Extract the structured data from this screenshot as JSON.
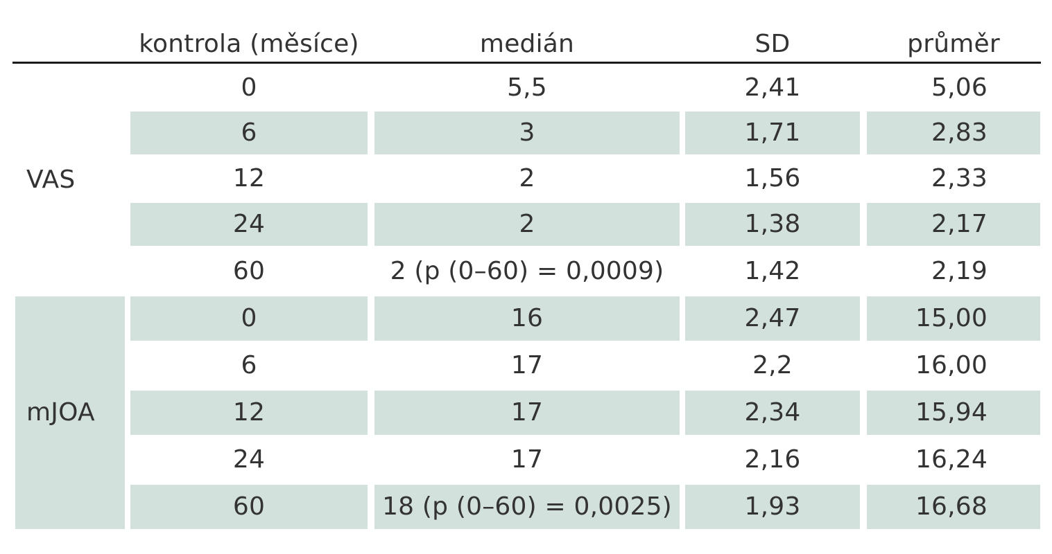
{
  "table": {
    "headers": {
      "col_group": "",
      "col_control": "kontrola (měsíce)",
      "col_median": "medián",
      "col_sd": "SD",
      "col_mean": "průměr"
    },
    "groups": [
      {
        "label": "VAS",
        "rows": [
          {
            "control": "0",
            "median": "5,5",
            "sd": "2,41",
            "mean": "5,06"
          },
          {
            "control": "6",
            "median": "3",
            "sd": "1,71",
            "mean": "2,83"
          },
          {
            "control": "12",
            "median": "2",
            "sd": "1,56",
            "mean": "2,33"
          },
          {
            "control": "24",
            "median": "2",
            "sd": "1,38",
            "mean": "2,17"
          },
          {
            "control": "60",
            "median": "2 (p (0–60) = 0,0009)",
            "sd": "1,42",
            "mean": "2,19"
          }
        ]
      },
      {
        "label": "mJOA",
        "rows": [
          {
            "control": "0",
            "median": "16",
            "sd": "2,47",
            "mean": "15,00"
          },
          {
            "control": "6",
            "median": "17",
            "sd": "2,2",
            "mean": "16,00"
          },
          {
            "control": "12",
            "median": "17",
            "sd": "2,34",
            "mean": "15,94"
          },
          {
            "control": "24",
            "median": "17",
            "sd": "2,16",
            "mean": "16,24"
          },
          {
            "control": "60",
            "median": "18 (p (0–60) = 0,0025)",
            "sd": "1,93",
            "mean": "16,68"
          }
        ]
      }
    ],
    "colors": {
      "shade": "#d3e1dc",
      "text": "#333333",
      "rule": "#1a1a1a"
    }
  }
}
